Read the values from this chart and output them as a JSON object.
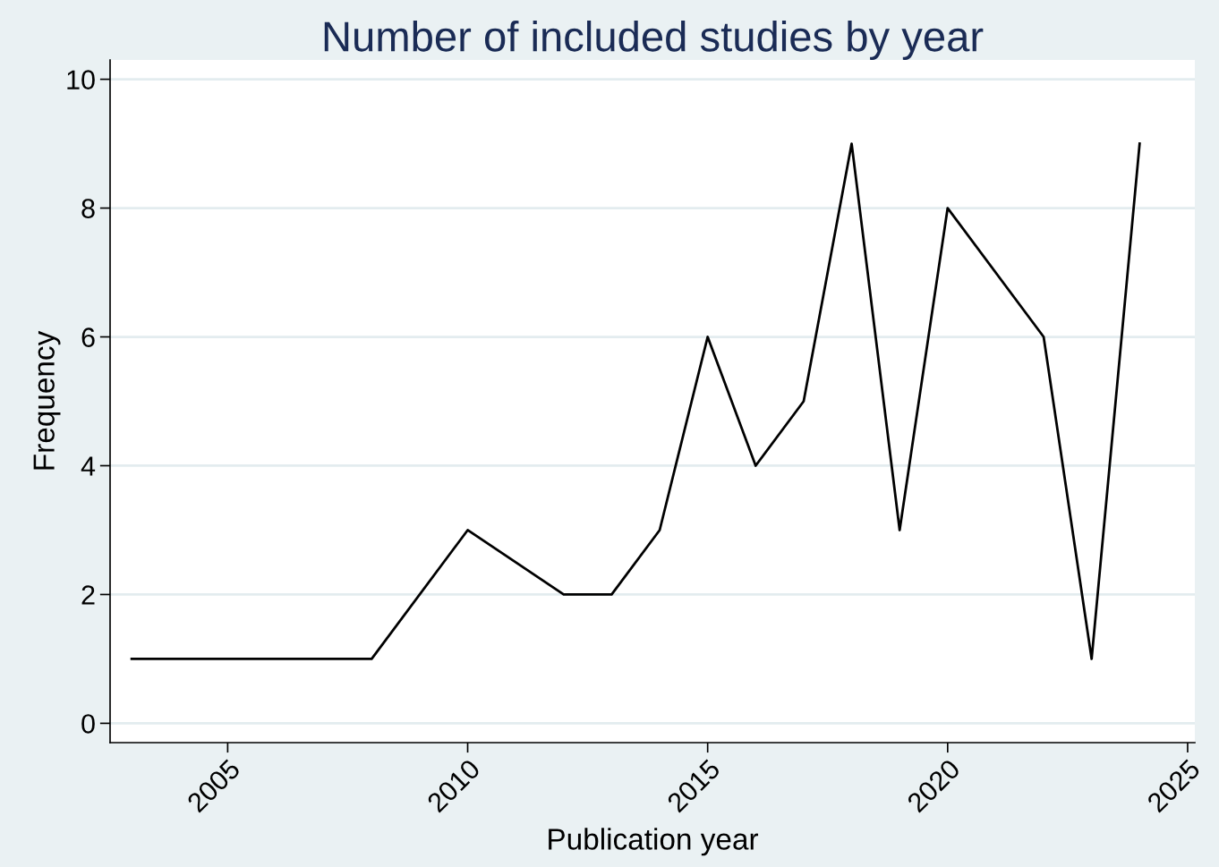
{
  "chart_data": {
    "type": "line",
    "title": "Number of included studies by year",
    "xlabel": "Publication year",
    "ylabel": "Frequency",
    "x": [
      2003,
      2008,
      2010,
      2012,
      2013,
      2014,
      2015,
      2016,
      2017,
      2018,
      2019,
      2020,
      2022,
      2023,
      2024
    ],
    "series": [
      {
        "color": "#000000",
        "values": [
          1,
          1,
          3,
          2,
          2,
          3,
          6,
          4,
          5,
          9,
          3,
          8,
          6,
          1,
          9
        ]
      }
    ],
    "xlim": [
      2002.55,
      2025.15
    ],
    "ylim": [
      -0.3,
      10.3
    ],
    "xticks": [
      2005,
      2010,
      2015,
      2020,
      2025
    ],
    "yticks": [
      0,
      2,
      4,
      6,
      8,
      10
    ],
    "grid": "y",
    "legend": false,
    "marker": "none",
    "line_style": "solid"
  }
}
